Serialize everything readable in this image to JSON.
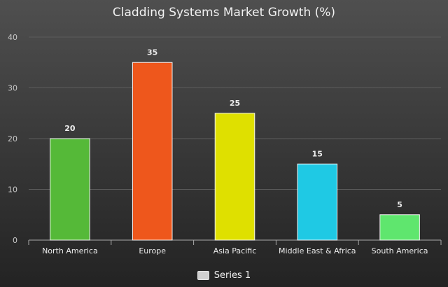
{
  "chart_data": {
    "type": "bar",
    "title": "Cladding Systems Market Growth (%)",
    "categories": [
      "North America",
      "Europe",
      "Asia Pacific",
      "Middle East & Africa",
      "South America"
    ],
    "series": [
      {
        "name": "Series 1",
        "values": [
          20,
          35,
          25,
          15,
          5
        ]
      }
    ],
    "bar_colors": [
      "#55b938",
      "#ee571c",
      "#dfe000",
      "#1fc9e4",
      "#5fe66e"
    ],
    "data_labels": [
      "20",
      "35",
      "25",
      "15",
      "5"
    ],
    "ylim": [
      0,
      40
    ],
    "yticks": [
      0,
      10,
      20,
      30,
      40
    ],
    "grid": true,
    "legend_position": "bottom"
  },
  "colors": {
    "grid": "#5c5c5c",
    "axis": "#a9a9a9",
    "tick_text": "#c8c8c8",
    "label_text": "#ececec"
  }
}
